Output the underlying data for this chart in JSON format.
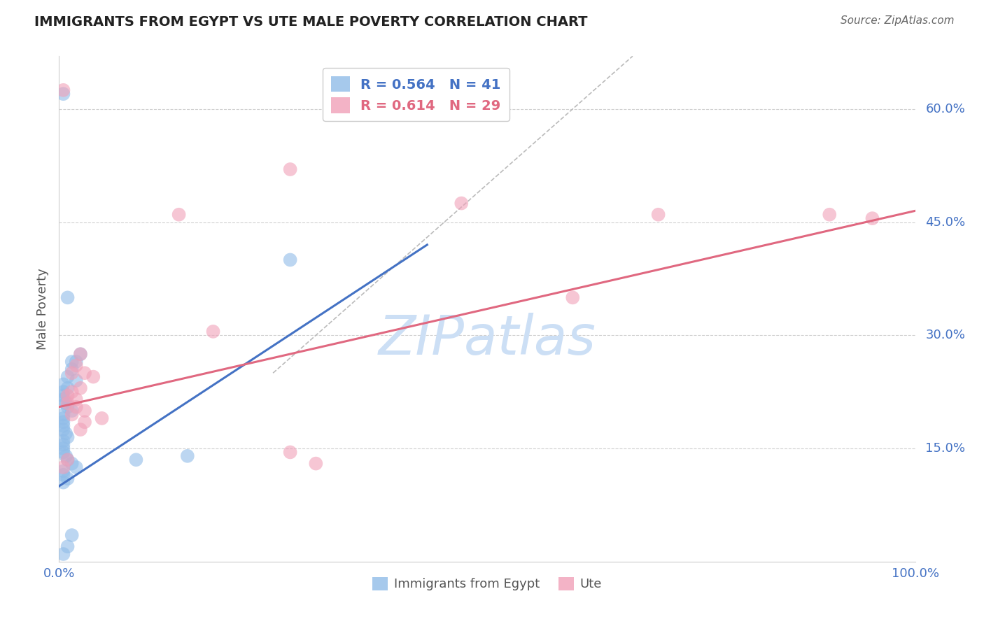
{
  "title": "IMMIGRANTS FROM EGYPT VS UTE MALE POVERTY CORRELATION CHART",
  "source": "Source: ZipAtlas.com",
  "ylabel": "Male Poverty",
  "xlim": [
    0,
    100
  ],
  "ylim": [
    0,
    67
  ],
  "x_tick_labels": [
    "0.0%",
    "100.0%"
  ],
  "y_tick_vals": [
    15,
    30,
    45,
    60
  ],
  "y_tick_labels": [
    "15.0%",
    "30.0%",
    "45.0%",
    "60.0%"
  ],
  "legend_entries": [
    {
      "label": "R = 0.564   N = 41",
      "color": "#a8c8f0"
    },
    {
      "label": "R = 0.614   N = 29",
      "color": "#f4a0b5"
    }
  ],
  "blue_scatter": [
    [
      0.5,
      62.0
    ],
    [
      1.0,
      35.0
    ],
    [
      2.5,
      27.5
    ],
    [
      2.0,
      26.5
    ],
    [
      1.5,
      26.5
    ],
    [
      1.5,
      25.5
    ],
    [
      1.0,
      24.5
    ],
    [
      2.0,
      24.0
    ],
    [
      0.5,
      23.5
    ],
    [
      1.0,
      23.0
    ],
    [
      0.5,
      22.5
    ],
    [
      0.5,
      22.0
    ],
    [
      0.5,
      21.5
    ],
    [
      0.8,
      21.0
    ],
    [
      1.0,
      20.5
    ],
    [
      1.5,
      20.0
    ],
    [
      0.5,
      19.5
    ],
    [
      0.5,
      19.0
    ],
    [
      0.5,
      18.5
    ],
    [
      0.5,
      18.0
    ],
    [
      0.5,
      17.5
    ],
    [
      0.8,
      17.0
    ],
    [
      1.0,
      16.5
    ],
    [
      0.5,
      16.0
    ],
    [
      0.5,
      15.5
    ],
    [
      0.5,
      15.0
    ],
    [
      0.5,
      14.5
    ],
    [
      0.8,
      14.0
    ],
    [
      1.0,
      13.5
    ],
    [
      1.5,
      13.0
    ],
    [
      2.0,
      12.5
    ],
    [
      0.5,
      12.0
    ],
    [
      0.5,
      11.5
    ],
    [
      1.0,
      11.0
    ],
    [
      0.5,
      10.5
    ],
    [
      9.0,
      13.5
    ],
    [
      15.0,
      14.0
    ],
    [
      27.0,
      40.0
    ],
    [
      1.5,
      3.5
    ],
    [
      1.0,
      2.0
    ],
    [
      0.5,
      1.0
    ]
  ],
  "pink_scatter": [
    [
      0.5,
      62.5
    ],
    [
      27.0,
      52.0
    ],
    [
      47.0,
      47.5
    ],
    [
      70.0,
      46.0
    ],
    [
      14.0,
      46.0
    ],
    [
      90.0,
      46.0
    ],
    [
      95.0,
      45.5
    ],
    [
      60.0,
      35.0
    ],
    [
      18.0,
      30.5
    ],
    [
      2.5,
      27.5
    ],
    [
      2.0,
      26.0
    ],
    [
      1.5,
      25.0
    ],
    [
      3.0,
      25.0
    ],
    [
      4.0,
      24.5
    ],
    [
      2.5,
      23.0
    ],
    [
      1.5,
      22.5
    ],
    [
      1.0,
      22.0
    ],
    [
      2.0,
      21.5
    ],
    [
      1.0,
      21.0
    ],
    [
      2.0,
      20.5
    ],
    [
      3.0,
      20.0
    ],
    [
      1.5,
      19.5
    ],
    [
      5.0,
      19.0
    ],
    [
      3.0,
      18.5
    ],
    [
      2.5,
      17.5
    ],
    [
      30.0,
      13.0
    ],
    [
      27.0,
      14.5
    ],
    [
      1.0,
      13.5
    ],
    [
      0.5,
      12.5
    ]
  ],
  "blue_line_x": [
    0,
    43
  ],
  "blue_line_y": [
    10.0,
    42.0
  ],
  "pink_line_x": [
    0,
    100
  ],
  "pink_line_y": [
    20.5,
    46.5
  ],
  "diag_line_x": [
    25,
    67
  ],
  "diag_line_y": [
    25,
    67
  ],
  "watermark": "ZIPatlas",
  "watermark_color": "#ccdff5",
  "background_color": "#ffffff",
  "grid_color": "#d0d0d0",
  "blue_dot_color": "#90bce8",
  "pink_dot_color": "#f0a0b8",
  "blue_line_color": "#4472c4",
  "pink_line_color": "#e06880",
  "axis_label_color": "#4472c4",
  "title_color": "#222222",
  "source_color": "#666666",
  "label_color": "#555555"
}
